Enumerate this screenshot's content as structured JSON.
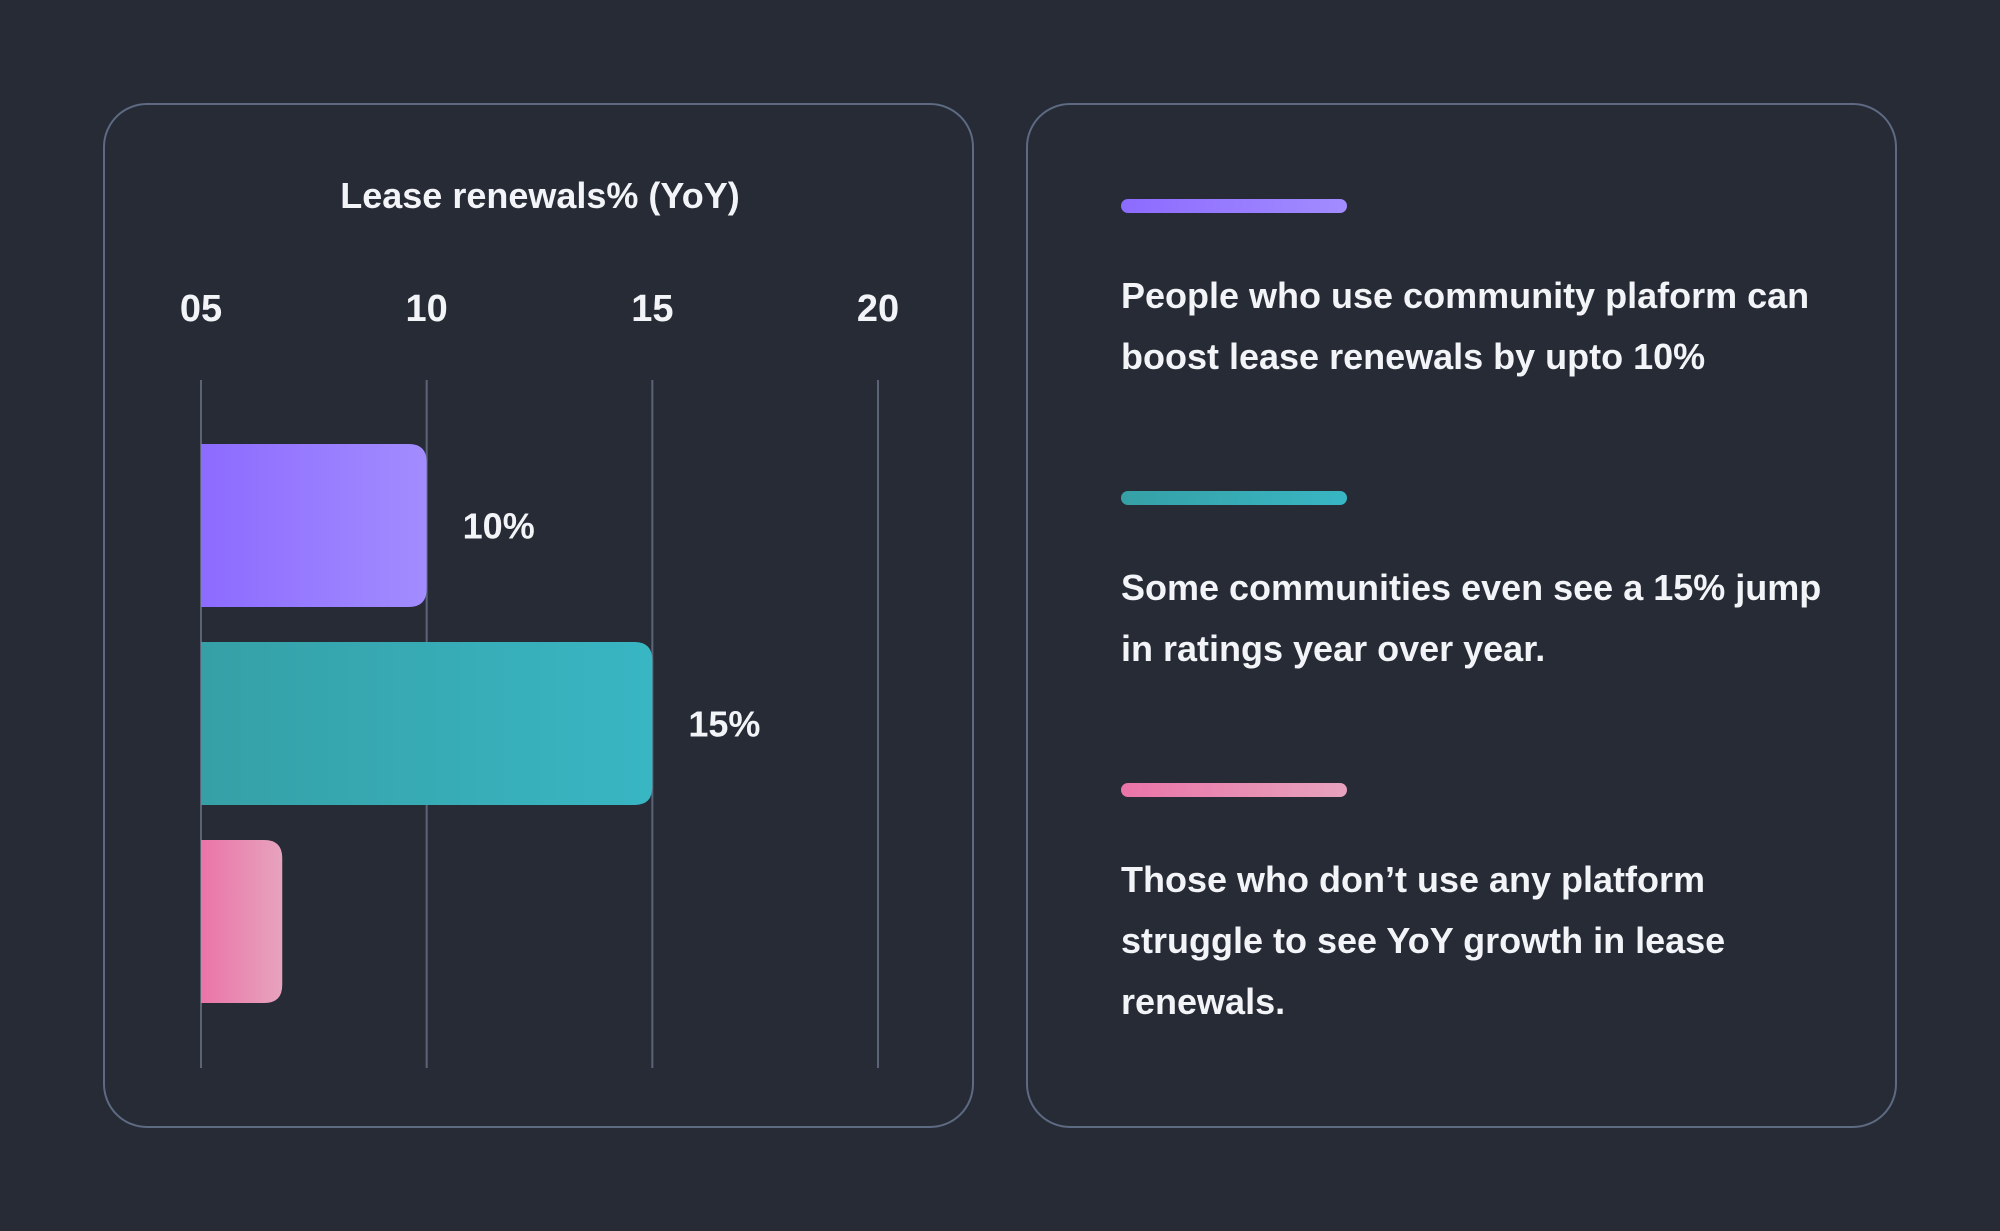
{
  "chart_data": {
    "type": "bar",
    "orientation": "horizontal",
    "title": "Lease renewals% (YoY)",
    "x_ticks": [
      "05",
      "10",
      "15",
      "20"
    ],
    "xlim": [
      5,
      20
    ],
    "grid": true,
    "bars": [
      {
        "value": 10,
        "label": "10%",
        "color_start": "#8c6bff",
        "color_end": "#a28cff"
      },
      {
        "value": 15,
        "label": "15%",
        "color_start": "#36a0a6",
        "color_end": "#38b6c3"
      },
      {
        "value": 6.8,
        "label": "",
        "color_start": "#ea74a8",
        "color_end": "#e7a3bd"
      }
    ]
  },
  "stats": [
    {
      "text": "People who use community plaform can boost lease renewals by upto 10%",
      "color_start": "#8c6bff",
      "color_end": "#a28cff"
    },
    {
      "text": "Some communities even see a 15% jump in ratings year over year.",
      "color_start": "#36a0a6",
      "color_end": "#38b6c3"
    },
    {
      "text": "Those who don’t use any platform struggle to see YoY growth in lease renewals.",
      "color_start": "#ea74a8",
      "color_end": "#e7a3bd"
    }
  ]
}
